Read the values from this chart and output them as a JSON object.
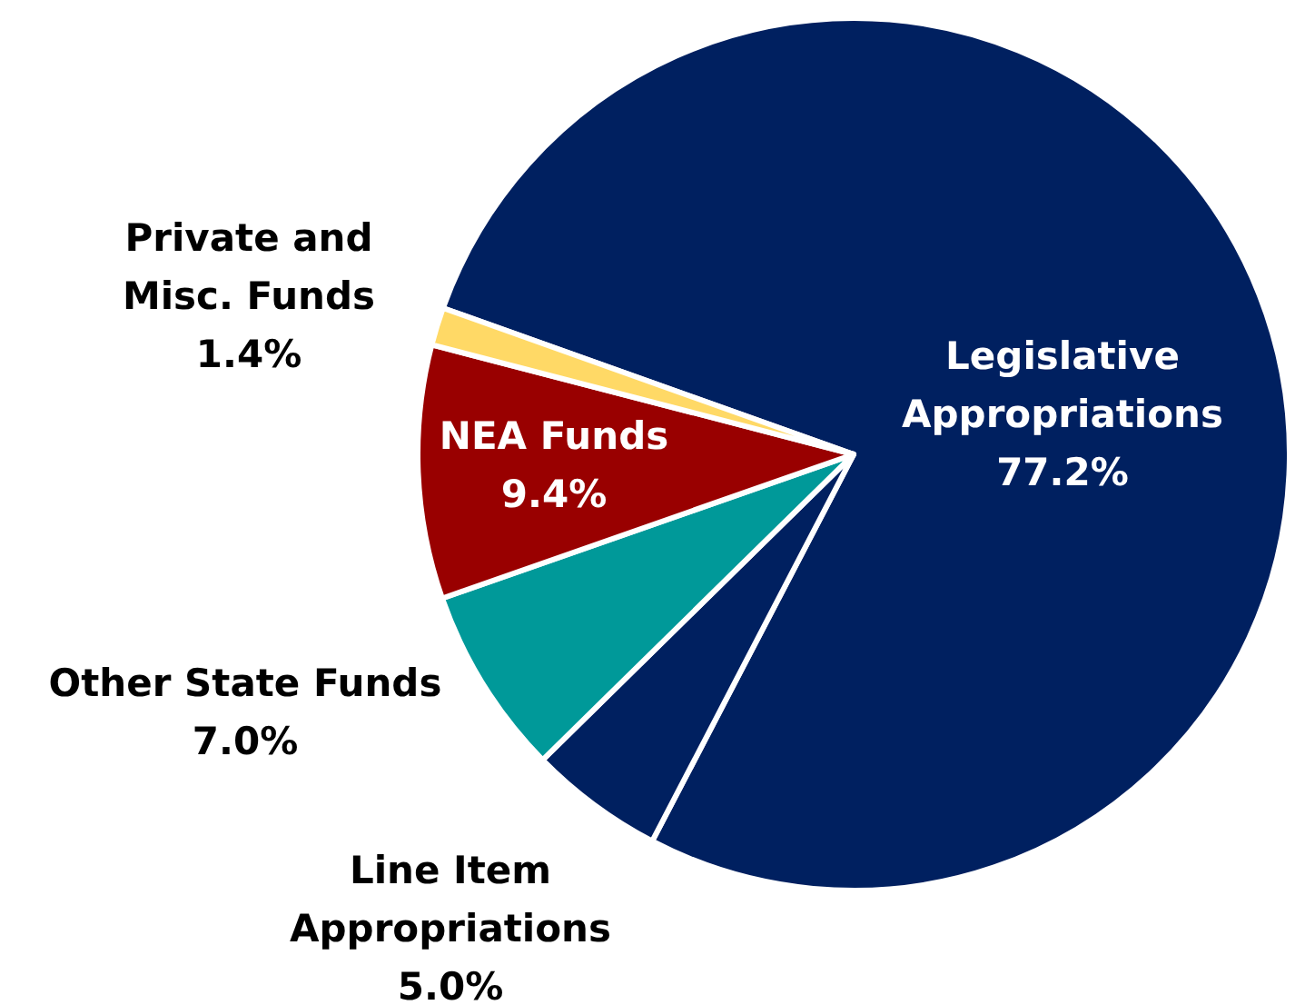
{
  "chart_data": {
    "type": "pie",
    "categories": [
      "Legislative Appropriations",
      "Line Item Appropriations",
      "Other State Funds",
      "NEA Funds",
      "Private and Misc. Funds"
    ],
    "values": [
      77.2,
      5.0,
      7.0,
      9.4,
      1.4
    ],
    "colors": [
      "#002060",
      "#002060",
      "#009999",
      "#990000",
      "#ffd966"
    ],
    "value_labels": [
      "77.2%",
      "5.0%",
      "7.0%",
      "9.4%",
      "1.4%"
    ],
    "legend": false
  }
}
